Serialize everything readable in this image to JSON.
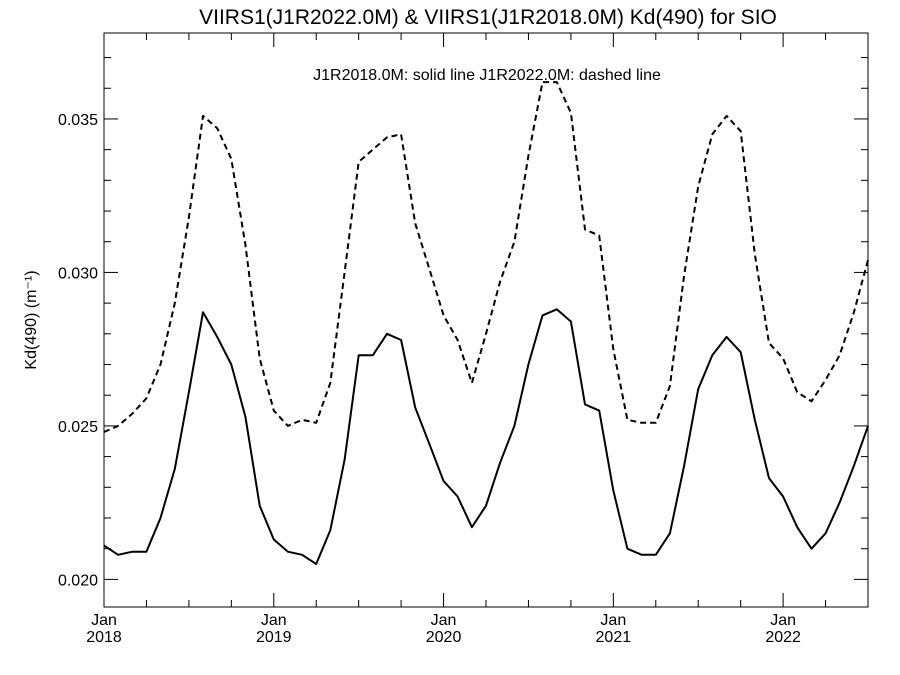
{
  "chart_data": {
    "type": "line",
    "title": "VIIRS1(J1R2022.0M) & VIIRS1(J1R2018.0M)  Kd(490) for SIO",
    "annotation": "J1R2018.0M: solid line   J1R2022.0M: dashed line",
    "ylabel": "Kd(490) (m⁻¹)",
    "xlabel": "",
    "xlim": [
      2018.0,
      2022.5
    ],
    "ylim": [
      0.0191,
      0.0378
    ],
    "x_ticks": [
      {
        "value": 2018,
        "month": "Jan",
        "year": "2018"
      },
      {
        "value": 2019,
        "month": "Jan",
        "year": "2019"
      },
      {
        "value": 2020,
        "month": "Jan",
        "year": "2020"
      },
      {
        "value": 2021,
        "month": "Jan",
        "year": "2021"
      },
      {
        "value": 2022,
        "month": "Jan",
        "year": "2022"
      }
    ],
    "y_ticks": [
      {
        "value": 0.02,
        "label": "0.020"
      },
      {
        "value": 0.025,
        "label": "0.025"
      },
      {
        "value": 0.03,
        "label": "0.030"
      },
      {
        "value": 0.035,
        "label": "0.035"
      }
    ],
    "grid": false,
    "x": [
      2018.0,
      2018.083,
      2018.167,
      2018.25,
      2018.333,
      2018.417,
      2018.5,
      2018.583,
      2018.667,
      2018.75,
      2018.833,
      2018.917,
      2019.0,
      2019.083,
      2019.167,
      2019.25,
      2019.333,
      2019.417,
      2019.5,
      2019.583,
      2019.667,
      2019.75,
      2019.833,
      2019.917,
      2020.0,
      2020.083,
      2020.167,
      2020.25,
      2020.333,
      2020.417,
      2020.5,
      2020.583,
      2020.667,
      2020.75,
      2020.833,
      2020.917,
      2021.0,
      2021.083,
      2021.167,
      2021.25,
      2021.333,
      2021.417,
      2021.5,
      2021.583,
      2021.667,
      2021.75,
      2021.833,
      2021.917,
      2022.0,
      2022.083,
      2022.167,
      2022.25,
      2022.333,
      2022.417,
      2022.5
    ],
    "series": [
      {
        "name": "J1R2018.0M",
        "style": "solid",
        "values": [
          0.0211,
          0.0208,
          0.0209,
          0.0209,
          0.022,
          0.0236,
          0.0261,
          0.0287,
          0.0279,
          0.027,
          0.0253,
          0.0224,
          0.0213,
          0.0209,
          0.0208,
          0.0205,
          0.0216,
          0.0239,
          0.0273,
          0.0273,
          0.028,
          0.0278,
          0.0256,
          0.0244,
          0.0232,
          0.0227,
          0.0217,
          0.0224,
          0.0238,
          0.025,
          0.027,
          0.0286,
          0.0288,
          0.0284,
          0.0257,
          0.0255,
          0.0229,
          0.021,
          0.0208,
          0.0208,
          0.0215,
          0.0237,
          0.0262,
          0.0273,
          0.0279,
          0.0274,
          0.0252,
          0.0233,
          0.0227,
          0.0217,
          0.021,
          0.0215,
          0.0225,
          0.0237,
          0.025
        ]
      },
      {
        "name": "J1R2022.0M",
        "style": "dashed",
        "values": [
          0.0248,
          0.025,
          0.0254,
          0.0259,
          0.027,
          0.029,
          0.0318,
          0.0351,
          0.0347,
          0.0337,
          0.0309,
          0.0272,
          0.0255,
          0.025,
          0.0252,
          0.0251,
          0.0264,
          0.03,
          0.0336,
          0.034,
          0.0344,
          0.0345,
          0.0316,
          0.0301,
          0.0286,
          0.0278,
          0.0264,
          0.028,
          0.0297,
          0.031,
          0.0338,
          0.0362,
          0.0362,
          0.0352,
          0.0314,
          0.0312,
          0.0275,
          0.0252,
          0.0251,
          0.0251,
          0.0263,
          0.0299,
          0.0328,
          0.0345,
          0.0351,
          0.0346,
          0.0306,
          0.0277,
          0.0272,
          0.0261,
          0.0258,
          0.0265,
          0.0273,
          0.0287,
          0.0304
        ]
      }
    ]
  }
}
